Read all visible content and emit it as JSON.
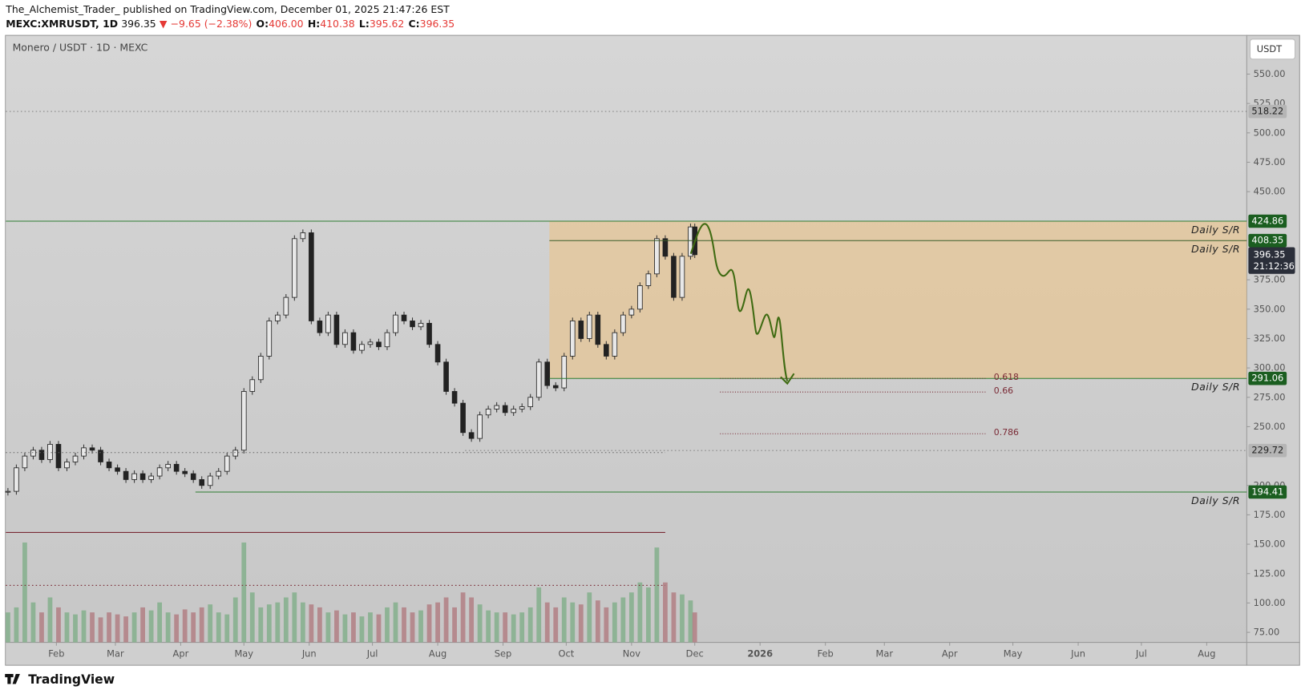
{
  "header": {
    "line1": "The_Alchemist_Trader_ published on TradingView.com, December 01, 2025 21:47:26 EST",
    "symbol": "MEXC:XMRUSDT, 1D",
    "last": "396.35",
    "arrow": "▼",
    "change": "−9.65 (−2.38%)",
    "o_label": "O:",
    "o": "406.00",
    "h_label": "H:",
    "h": "410.38",
    "l_label": "L:",
    "l": "395.62",
    "c_label": "C:",
    "c": "396.35"
  },
  "footer": {
    "brand": "TradingView"
  },
  "chart_data": {
    "type": "candlestick",
    "title": "Monero / USDT · 1D · MEXC",
    "axis_label": "USDT",
    "x": [
      8,
      12,
      16,
      20,
      24,
      28,
      32,
      36,
      40,
      44,
      48,
      52,
      56,
      60,
      64,
      68,
      72,
      76,
      80,
      84,
      88,
      92,
      96,
      100,
      104,
      108,
      112,
      116,
      120,
      124,
      128,
      132,
      136,
      140,
      144,
      148,
      152,
      156,
      160,
      164,
      168,
      172,
      176,
      180,
      184,
      188,
      192,
      196,
      200,
      204,
      208,
      212,
      216,
      220,
      224,
      228,
      232,
      236,
      240,
      244,
      248,
      252,
      256,
      260,
      264,
      268,
      272,
      276,
      280,
      284,
      288,
      292,
      296,
      300,
      304,
      308,
      312,
      316,
      320,
      324,
      328,
      332,
      334
    ],
    "closes": [
      195,
      215,
      225,
      230,
      222,
      235,
      215,
      220,
      225,
      232,
      230,
      220,
      215,
      212,
      205,
      210,
      205,
      208,
      215,
      218,
      212,
      210,
      205,
      200,
      208,
      212,
      225,
      230,
      280,
      290,
      310,
      340,
      345,
      360,
      410,
      415,
      340,
      330,
      345,
      320,
      330,
      315,
      320,
      322,
      318,
      330,
      345,
      340,
      335,
      338,
      320,
      305,
      280,
      270,
      245,
      240,
      260,
      265,
      268,
      262,
      265,
      267,
      275,
      305,
      285,
      283,
      310,
      340,
      325,
      345,
      320,
      310,
      330,
      345,
      350,
      370,
      380,
      410,
      395,
      360,
      395,
      420,
      396.35
    ],
    "volume": [
      30,
      35,
      100,
      40,
      30,
      45,
      35,
      30,
      28,
      32,
      30,
      25,
      30,
      28,
      26,
      30,
      35,
      32,
      40,
      30,
      28,
      33,
      30,
      35,
      38,
      30,
      28,
      45,
      100,
      50,
      35,
      38,
      40,
      45,
      50,
      40,
      38,
      35,
      30,
      32,
      28,
      30,
      26,
      30,
      28,
      35,
      40,
      35,
      30,
      32,
      38,
      40,
      45,
      35,
      50,
      45,
      38,
      32,
      30,
      30,
      28,
      30,
      35,
      55,
      40,
      35,
      45,
      40,
      38,
      50,
      42,
      35,
      40,
      45,
      50,
      60,
      55,
      95,
      60,
      50,
      48,
      42,
      30
    ],
    "volume_lim": [
      0,
      100
    ],
    "xlim": [
      7,
      596
    ],
    "xticks": [
      {
        "value": 31,
        "label": "Feb"
      },
      {
        "value": 59,
        "label": "Mar"
      },
      {
        "value": 90,
        "label": "Apr"
      },
      {
        "value": 120,
        "label": "May"
      },
      {
        "value": 151,
        "label": "Jun"
      },
      {
        "value": 181,
        "label": "Jul"
      },
      {
        "value": 212,
        "label": "Aug"
      },
      {
        "value": 243,
        "label": "Sep"
      },
      {
        "value": 273,
        "label": "Oct"
      },
      {
        "value": 304,
        "label": "Nov"
      },
      {
        "value": 334,
        "label": "Dec"
      },
      {
        "value": 365,
        "label": "2026"
      },
      {
        "value": 396,
        "label": "Feb"
      },
      {
        "value": 424,
        "label": "Mar"
      },
      {
        "value": 455,
        "label": "Apr"
      },
      {
        "value": 485,
        "label": "May"
      },
      {
        "value": 516,
        "label": "Jun"
      },
      {
        "value": 546,
        "label": "Jul"
      },
      {
        "value": 577,
        "label": "Aug"
      }
    ],
    "ylim": [
      66.5,
      583.3
    ],
    "yticks": [
      {
        "value": 75,
        "label": "75.00"
      },
      {
        "value": 100,
        "label": "100.00"
      },
      {
        "value": 125,
        "label": "125.00"
      },
      {
        "value": 150,
        "label": "150.00"
      },
      {
        "value": 175,
        "label": "175.00"
      },
      {
        "value": 200,
        "label": "200.00"
      },
      {
        "value": 250,
        "label": "250.00"
      },
      {
        "value": 275,
        "label": "275.00"
      },
      {
        "value": 300,
        "label": "300.00"
      },
      {
        "value": 325,
        "label": "325.00"
      },
      {
        "value": 350,
        "label": "350.00"
      },
      {
        "value": 375,
        "label": "375.00"
      },
      {
        "value": 450,
        "label": "450.00"
      },
      {
        "value": 475,
        "label": "475.00"
      },
      {
        "value": 500,
        "label": "500.00"
      },
      {
        "value": 525,
        "label": "525.00"
      },
      {
        "value": 550,
        "label": "550.00"
      }
    ],
    "zone": {
      "low": 291.06,
      "high": 424.86,
      "start": 265,
      "color": "#f2c27a"
    },
    "levels": [
      {
        "price": 518.22,
        "start": 7,
        "style": "dotted",
        "color": "#888888",
        "tag_color": "#b5b5b5"
      },
      {
        "price": 424.86,
        "start": 7,
        "style": "solid",
        "color": "#2e7d32",
        "tag_color": "#1b5e20",
        "label": "Daily S/R"
      },
      {
        "price": 408.35,
        "start": 265,
        "style": "solid",
        "color": "#3b5d2a",
        "tag_color": "#1b5e20",
        "label": "Daily S/R"
      },
      {
        "price": 291.06,
        "start": 265,
        "style": "solid",
        "color": "#2e7d32",
        "tag_color": "#1b5e20",
        "label": "Daily S/R"
      },
      {
        "price": 229.72,
        "start": 225,
        "style": "dotted",
        "color": "#888888",
        "tag_color": "#b5b5b5"
      },
      {
        "price": 228,
        "start": 7,
        "end": 320,
        "style": "dotted",
        "color": "#666666"
      },
      {
        "price": 194.41,
        "start": 97,
        "style": "solid",
        "color": "#2e7d32",
        "tag_color": "#1b5e20",
        "label": "Daily S/R"
      },
      {
        "price": 160,
        "start": 7,
        "end": 320,
        "style": "solid",
        "color": "#7a2a35"
      },
      {
        "price": 115,
        "start": 7,
        "end": 320,
        "style": "dotted",
        "color": "#7a2a35"
      }
    ],
    "fib": [
      {
        "label": "0.618",
        "price": 291.06,
        "start": 346,
        "end": 472
      },
      {
        "label": "0.66",
        "price": 279.5,
        "start": 346,
        "end": 472
      },
      {
        "label": "0.786",
        "price": 244,
        "start": 346,
        "end": 472
      }
    ],
    "current": {
      "value": 396.35,
      "countdown": "21:12:36"
    }
  }
}
